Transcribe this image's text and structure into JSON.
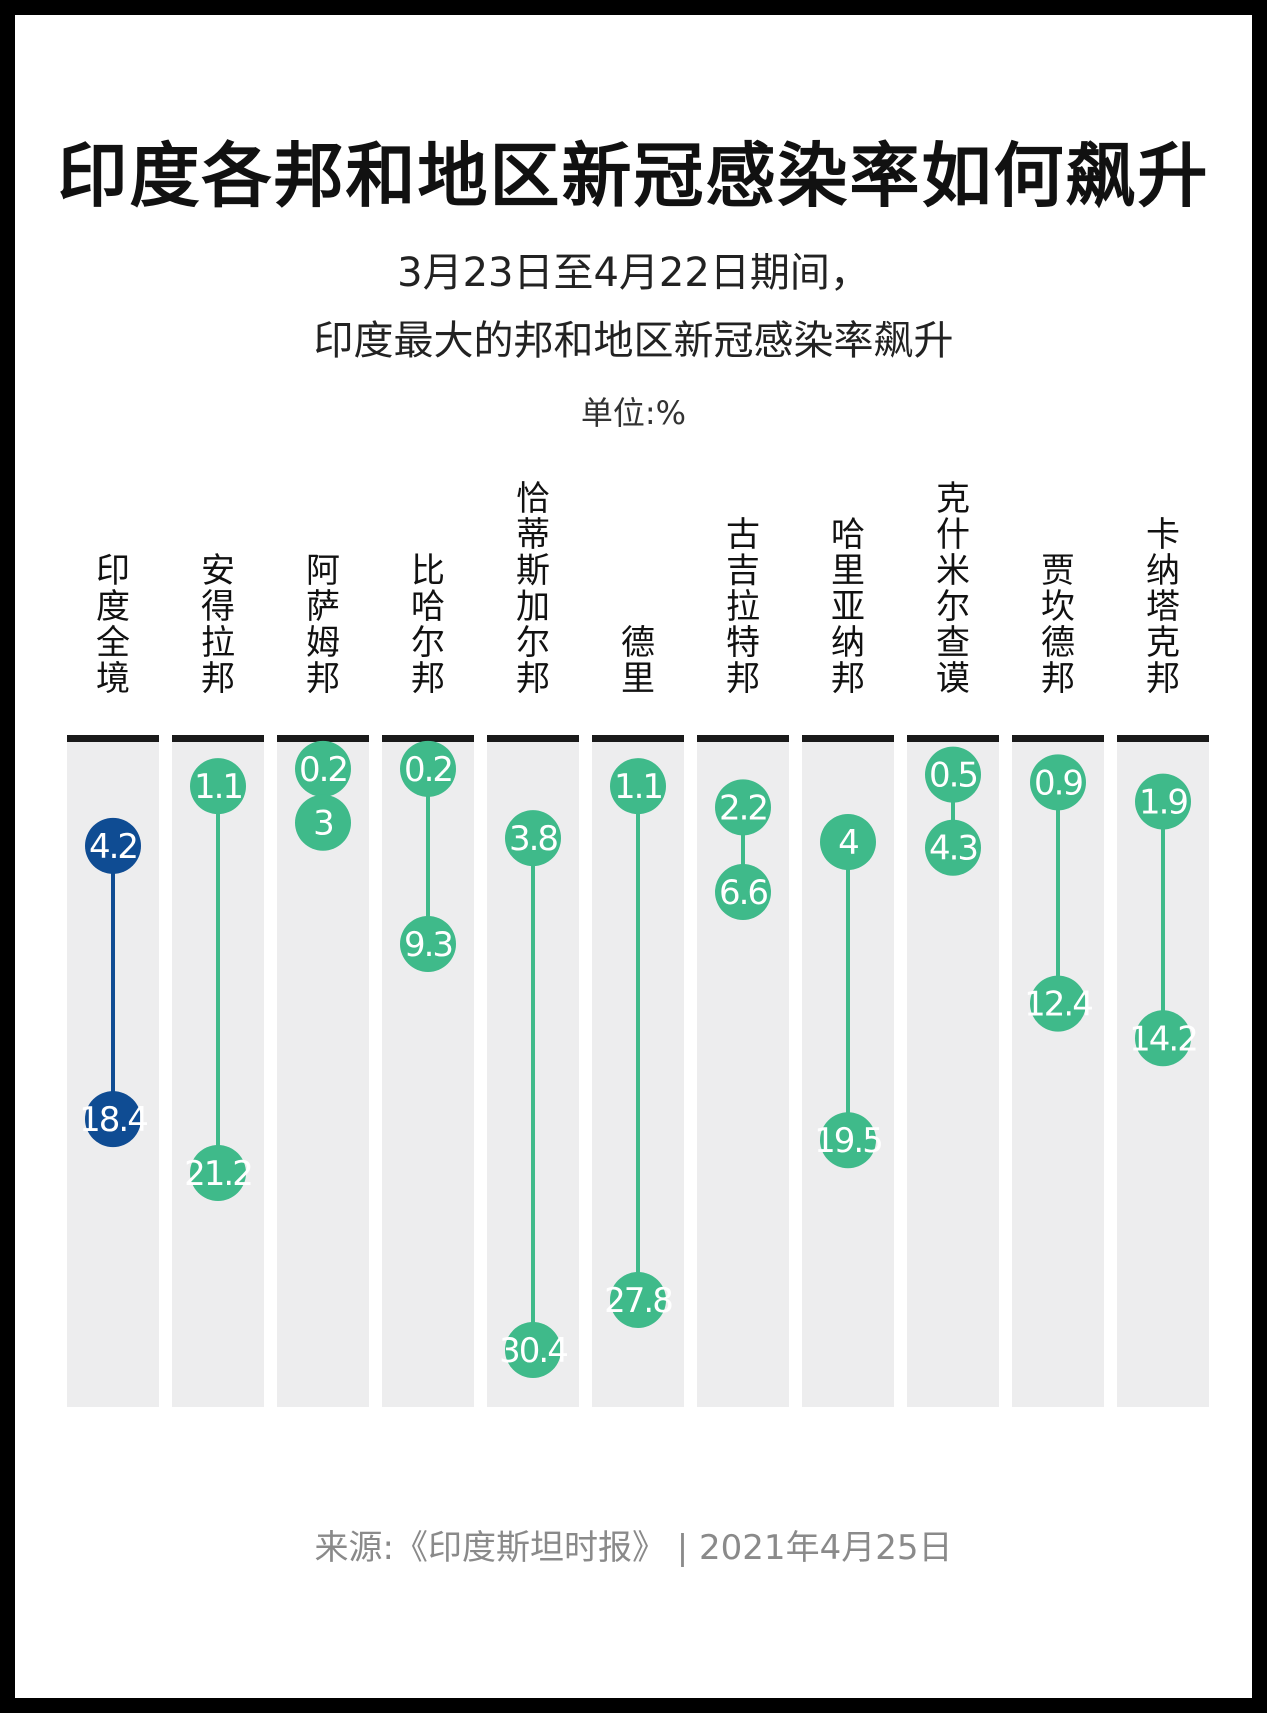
{
  "title": "印度各邦和地区新冠感染率如何飙升",
  "subtitle_line1": "3月23日至4月22日期间，",
  "subtitle_line2": "印度最大的邦和地区新冠感染率飙升",
  "unit": "单位:%",
  "source": "来源:《印度斯坦时报》 | 2021年4月25日",
  "colors": {
    "national": "#0f4c93",
    "state": "#3fba8a",
    "column_bg": "#ededee",
    "header_bar": "#1a1a1a"
  },
  "chart_data": {
    "type": "dumbbell",
    "categories": [
      "印度全境",
      "安得拉邦",
      "阿萨姆邦",
      "比哈尔邦",
      "恰蒂斯加尔邦",
      "德里",
      "古吉拉特邦",
      "哈里亚纳邦",
      "克什米尔查谟",
      "贾坎德邦",
      "卡纳塔克邦"
    ],
    "series": [
      {
        "values": [
          4.2,
          1.1,
          0.2,
          0.2,
          3.8,
          1.1,
          2.2,
          4,
          0.5,
          0.9,
          1.9
        ]
      },
      {
        "values": [
          18.4,
          21.2,
          3,
          9.3,
          30.4,
          27.8,
          6.6,
          19.5,
          4.3,
          12.4,
          14.2
        ]
      }
    ],
    "value_labels_start": [
      "4.2",
      "1.1",
      "0.2",
      "0.2",
      "3.8",
      "1.1",
      "2.2",
      "4",
      "0.5",
      "0.9",
      "1.9"
    ],
    "value_labels_end": [
      "18.4",
      "21.2",
      "3",
      "9.3",
      "30.4",
      "27.8",
      "6.6",
      "19.5",
      "4.3",
      "12.4",
      "14.2"
    ],
    "highlight_category": "印度全境",
    "ylim": [
      0,
      30.4
    ],
    "axis_inverted": true,
    "grid": false
  }
}
